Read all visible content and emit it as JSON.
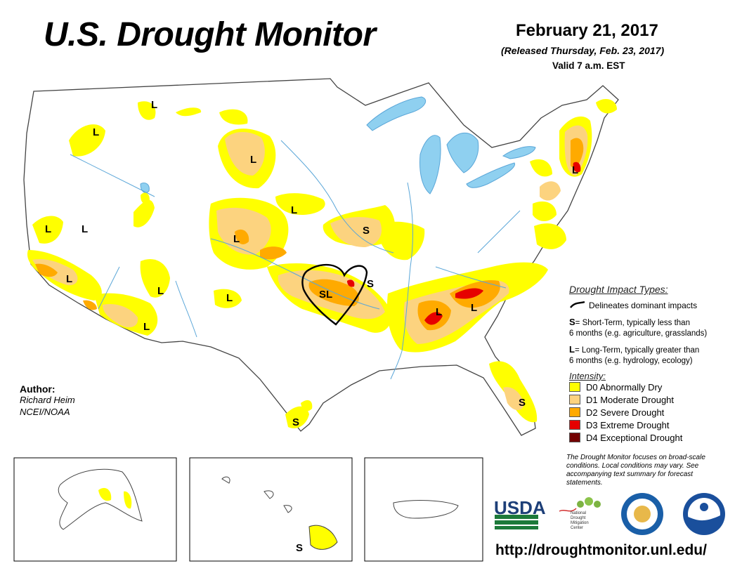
{
  "header": {
    "title": "U.S. Drought Monitor",
    "date": "February 21, 2017",
    "released": "(Released Thursday, Feb. 23, 2017)",
    "valid": "Valid 7 a.m. EST"
  },
  "impact_legend": {
    "heading": "Drought Impact Types:",
    "delineates": "Delineates dominant impacts",
    "short_term_key": "S",
    "short_term_line1": "= Short-Term, typically less than",
    "short_term_line2": "6 months (e.g. agriculture, grasslands)",
    "long_term_key": "L",
    "long_term_line1": "= Long-Term, typically greater than",
    "long_term_line2": "6 months (e.g. hydrology, ecology)"
  },
  "intensity_legend": {
    "heading": "Intensity:",
    "items": [
      {
        "label": "D0 Abnormally Dry",
        "color": "#ffff00"
      },
      {
        "label": "D1 Moderate Drought",
        "color": "#fcd37f"
      },
      {
        "label": "D2 Severe Drought",
        "color": "#ffaa00"
      },
      {
        "label": "D3 Extreme Drought",
        "color": "#e60000"
      },
      {
        "label": "D4 Exceptional Drought",
        "color": "#730000"
      }
    ]
  },
  "disclaimer": "The Drought Monitor focuses on broad-scale conditions. Local conditions may vary. See accompanying text summary for forecast statements.",
  "author": {
    "heading": "Author:",
    "name": "Richard Heim",
    "org": "NCEI/NOAA"
  },
  "map_labels": {
    "L": "L",
    "S": "S",
    "SL": "SL"
  },
  "logos": {
    "usda": "USDA",
    "ndmc": "National Drought Mitigation Center"
  },
  "url": "http://droughtmonitor.unl.edu/",
  "colors": {
    "water": "#8fd0f0",
    "d0": "#ffff00",
    "d1": "#fcd37f",
    "d2": "#ffaa00",
    "d3": "#e60000",
    "d4": "#730000",
    "river": "#5aa6d8"
  }
}
